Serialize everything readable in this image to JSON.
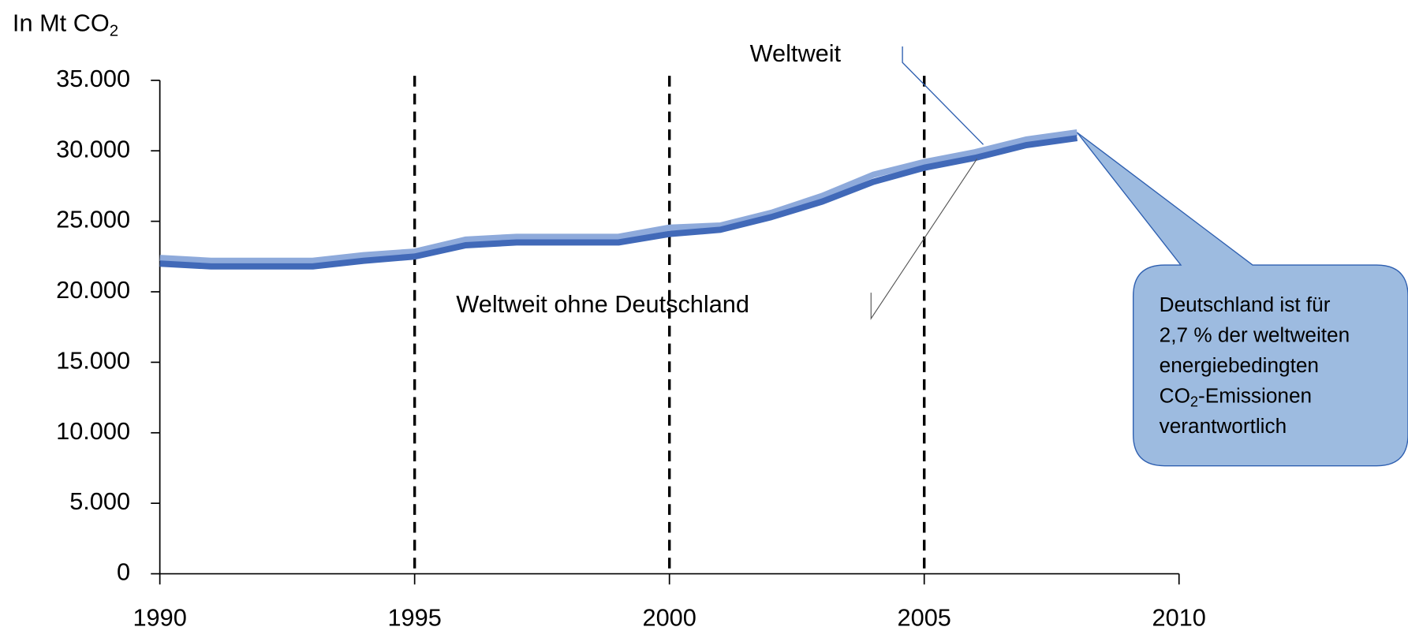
{
  "chart_data": {
    "type": "line",
    "ylabel": {
      "text": "In Mt CO",
      "sub": "2"
    },
    "x": [
      1990,
      1991,
      1992,
      1993,
      1994,
      1995,
      1996,
      1997,
      1998,
      1999,
      2000,
      2001,
      2002,
      2003,
      2004,
      2005,
      2006,
      2007,
      2008
    ],
    "series": [
      {
        "name": "Weltweit",
        "color": "#8eaadb",
        "values": [
          22400,
          22200,
          22200,
          22200,
          22600,
          22850,
          23700,
          23900,
          23900,
          23900,
          24550,
          24700,
          25600,
          26800,
          28300,
          29200,
          29900,
          30800,
          31300
        ]
      },
      {
        "name": "Weltweit ohne Deutschland",
        "color": "#4169b8",
        "values": [
          22000,
          21800,
          21800,
          21800,
          22200,
          22500,
          23300,
          23500,
          23500,
          23500,
          24100,
          24400,
          25300,
          26400,
          27800,
          28800,
          29500,
          30400,
          30900
        ]
      }
    ],
    "xlim": [
      1990,
      2010
    ],
    "xticks": [
      1990,
      1995,
      2000,
      2005,
      2010
    ],
    "ylim": [
      0,
      35000
    ],
    "yticks": [
      0,
      {
        "value": 5000,
        "label": "5.000"
      },
      {
        "value": 10000,
        "label": "10.000"
      },
      {
        "value": 15000,
        "label": "15.000"
      },
      {
        "value": 20000,
        "label": "20.000"
      },
      {
        "value": 25000,
        "label": "25.000"
      },
      {
        "value": 30000,
        "label": "30.000"
      },
      {
        "value": 35000,
        "label": "35.000"
      }
    ],
    "vlines": [
      1995,
      2000,
      2005
    ],
    "annotation": [
      [
        {
          "text": "Deutschland ist für"
        }
      ],
      [
        {
          "text": "2,7 % der weltweiten"
        }
      ],
      [
        {
          "text": "energiebedingten"
        }
      ],
      [
        {
          "text": "CO"
        },
        {
          "sub": "2"
        },
        {
          "text": "-Emissionen"
        }
      ],
      [
        {
          "text": "verantwortlich"
        }
      ]
    ]
  }
}
